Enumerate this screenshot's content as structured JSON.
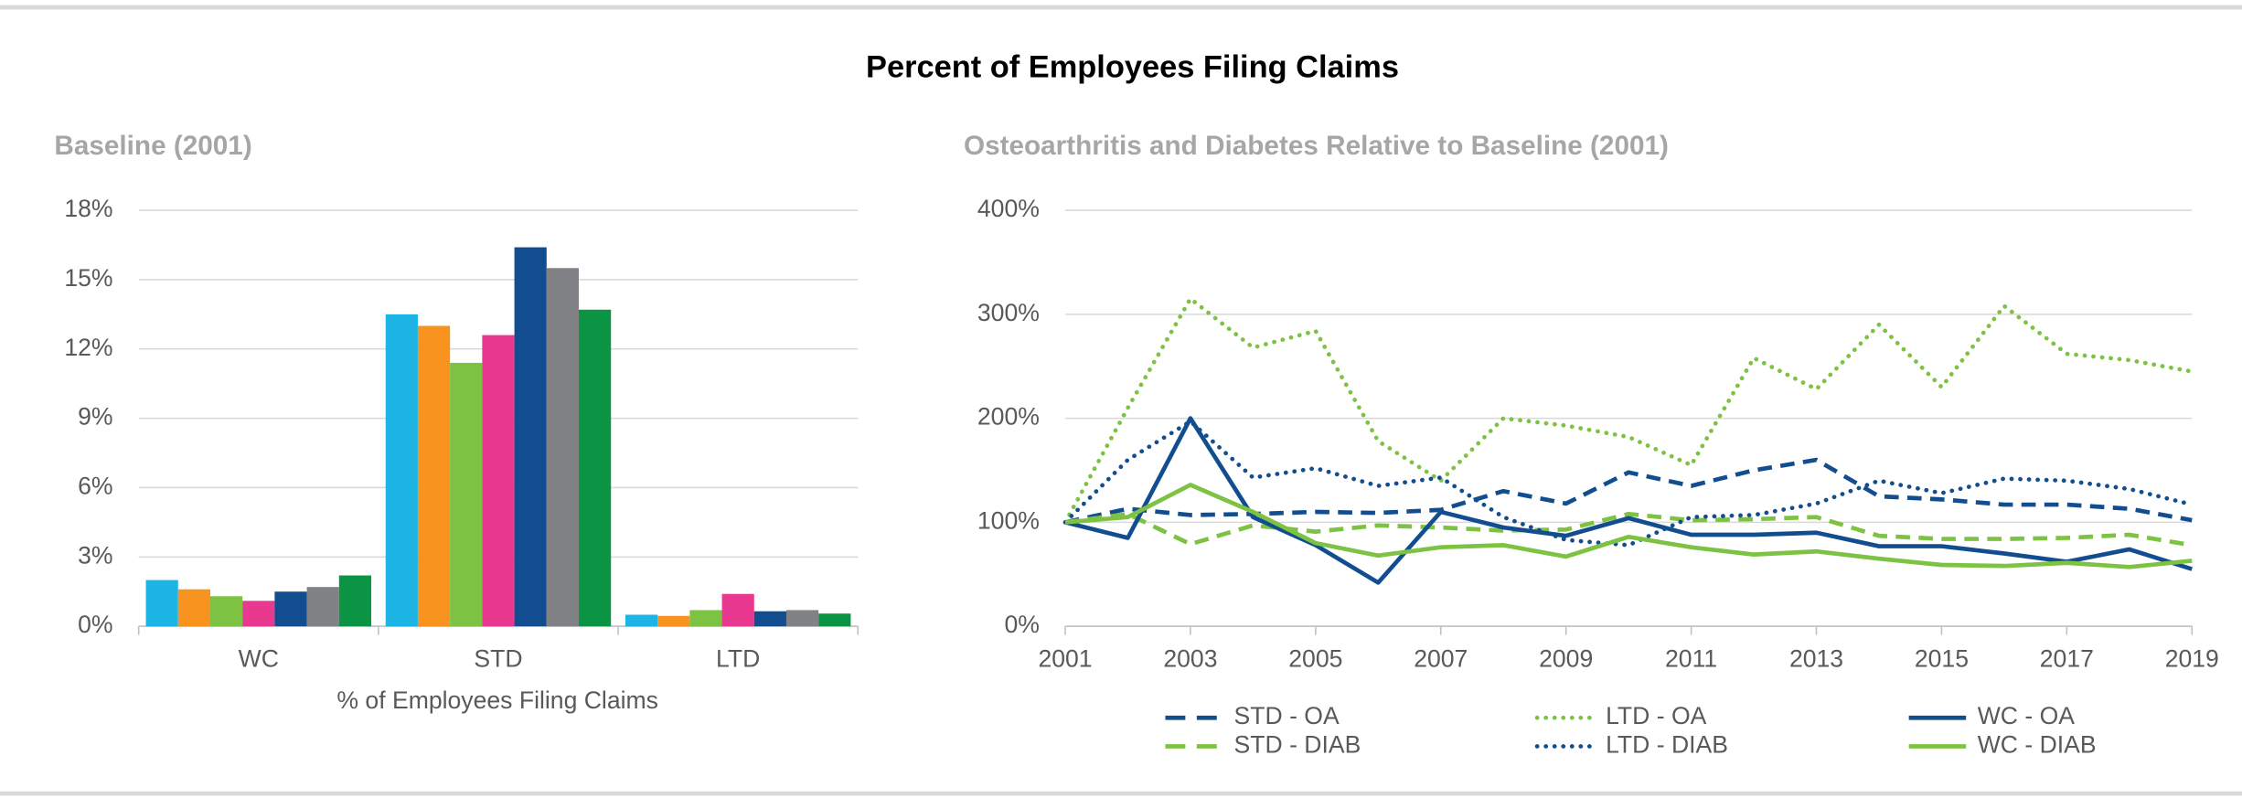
{
  "title": "Percent of Employees Filing Claims",
  "chart_data": [
    {
      "type": "bar",
      "title": "Baseline (2001)",
      "x_label": "% of Employees Filing Claims",
      "categories": [
        "WC",
        "STD",
        "LTD"
      ],
      "series": [
        {
          "color": "#1cb5e6",
          "values": [
            2.0,
            13.5,
            0.5
          ]
        },
        {
          "color": "#f7931e",
          "values": [
            1.6,
            13.0,
            0.45
          ]
        },
        {
          "color": "#7dc242",
          "values": [
            1.3,
            11.4,
            0.7
          ]
        },
        {
          "color": "#e8388f",
          "values": [
            1.1,
            12.6,
            1.4
          ]
        },
        {
          "color": "#124e8f",
          "values": [
            1.5,
            16.4,
            0.65
          ]
        },
        {
          "color": "#808285",
          "values": [
            1.7,
            15.5,
            0.7
          ]
        },
        {
          "color": "#0b9444",
          "values": [
            2.2,
            13.7,
            0.55
          ]
        }
      ],
      "ylim": [
        0,
        18
      ],
      "yticks": [
        {
          "value": 0,
          "label": "0%"
        },
        {
          "value": 3,
          "label": "3%"
        },
        {
          "value": 6,
          "label": "6%"
        },
        {
          "value": 9,
          "label": "9%"
        },
        {
          "value": 12,
          "label": "12%"
        },
        {
          "value": 15,
          "label": "15%"
        },
        {
          "value": 18,
          "label": "18%"
        }
      ],
      "grid": true
    },
    {
      "type": "line",
      "title": "Osteoarthritis and Diabetes Relative to Baseline (2001)",
      "x": [
        2001,
        2002,
        2003,
        2004,
        2005,
        2006,
        2007,
        2008,
        2009,
        2010,
        2011,
        2012,
        2013,
        2014,
        2015,
        2016,
        2017,
        2018,
        2019
      ],
      "series": [
        {
          "name": "STD - OA",
          "color": "#124e8f",
          "style": "dashed",
          "values": [
            100,
            113,
            107,
            108,
            110,
            109,
            112,
            130,
            118,
            148,
            135,
            150,
            160,
            125,
            122,
            117,
            117,
            113,
            102
          ]
        },
        {
          "name": "STD - DIAB",
          "color": "#7dc242",
          "style": "dashed",
          "values": [
            100,
            108,
            79,
            97,
            91,
            97,
            95,
            92,
            93,
            108,
            102,
            103,
            105,
            87,
            84,
            84,
            85,
            88,
            78
          ]
        },
        {
          "name": "LTD - OA",
          "color": "#7dc242",
          "style": "dotted",
          "values": [
            100,
            210,
            315,
            268,
            284,
            178,
            140,
            200,
            193,
            182,
            155,
            258,
            228,
            290,
            230,
            308,
            262,
            256,
            245
          ]
        },
        {
          "name": "LTD - DIAB",
          "color": "#124e8f",
          "style": "dotted",
          "values": [
            100,
            160,
            197,
            143,
            152,
            135,
            143,
            105,
            83,
            78,
            105,
            107,
            118,
            140,
            128,
            142,
            140,
            132,
            117
          ]
        },
        {
          "name": "WC - OA",
          "color": "#124e8f",
          "style": "solid",
          "values": [
            100,
            85,
            200,
            105,
            78,
            42,
            110,
            95,
            87,
            104,
            88,
            88,
            90,
            77,
            77,
            70,
            62,
            74,
            55
          ]
        },
        {
          "name": "WC - DIAB",
          "color": "#7dc242",
          "style": "solid",
          "values": [
            100,
            105,
            136,
            110,
            80,
            68,
            76,
            78,
            67,
            86,
            76,
            69,
            72,
            65,
            59,
            58,
            61,
            57,
            63
          ]
        }
      ],
      "xlim": [
        2001,
        2019
      ],
      "xticks": [
        2001,
        2003,
        2005,
        2007,
        2009,
        2011,
        2013,
        2015,
        2017,
        2019
      ],
      "ylim": [
        0,
        400
      ],
      "yticks": [
        {
          "value": 0,
          "label": "0%"
        },
        {
          "value": 100,
          "label": "100%"
        },
        {
          "value": 200,
          "label": "200%"
        },
        {
          "value": 300,
          "label": "300%"
        },
        {
          "value": 400,
          "label": "400%"
        }
      ],
      "grid": true
    }
  ]
}
